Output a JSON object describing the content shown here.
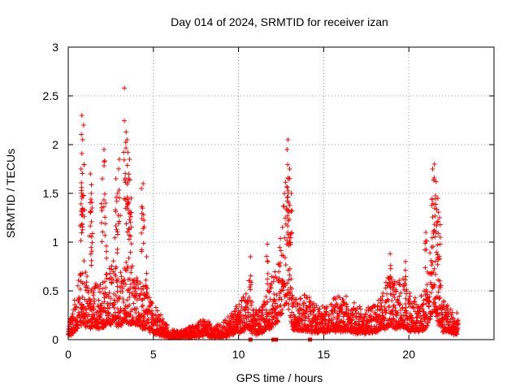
{
  "chart_data": {
    "type": "scatter",
    "title": "Day 014 of 2024, SRMTID for receiver izan",
    "xlabel": "GPS time / hours",
    "ylabel": "SRMTID / TECUs",
    "xlim": [
      0,
      25
    ],
    "ylim": [
      0,
      3
    ],
    "grid": true,
    "marker": "+",
    "marker_color": "#ff0000",
    "x_ticks": [
      0,
      5,
      10,
      15,
      20
    ],
    "x_tick_labels": [
      "0",
      "5",
      "10",
      "15",
      "20"
    ],
    "y_ticks": [
      0,
      0.5,
      1,
      1.5,
      2,
      2.5,
      3
    ],
    "y_tick_labels": [
      "0",
      "0.5",
      "1",
      "1.5",
      "2",
      "2.5",
      "3"
    ],
    "series": [
      {
        "name": "SRMTID",
        "envelope": [
          [
            0.0,
            0.15
          ],
          [
            0.3,
            0.3
          ],
          [
            0.6,
            0.5
          ],
          [
            0.9,
            0.7
          ],
          [
            1.2,
            0.45
          ],
          [
            1.5,
            0.55
          ],
          [
            1.8,
            0.45
          ],
          [
            2.1,
            0.5
          ],
          [
            2.4,
            0.65
          ],
          [
            2.7,
            0.7
          ],
          [
            3.0,
            0.55
          ],
          [
            3.3,
            0.75
          ],
          [
            3.6,
            0.7
          ],
          [
            3.9,
            0.65
          ],
          [
            4.2,
            0.55
          ],
          [
            4.5,
            0.45
          ],
          [
            4.8,
            0.35
          ],
          [
            5.0,
            0.3
          ],
          [
            5.5,
            0.18
          ],
          [
            6.0,
            0.08
          ],
          [
            6.5,
            0.07
          ],
          [
            7.0,
            0.1
          ],
          [
            7.5,
            0.13
          ],
          [
            8.0,
            0.18
          ],
          [
            8.5,
            0.12
          ],
          [
            9.0,
            0.13
          ],
          [
            9.5,
            0.22
          ],
          [
            10.0,
            0.3
          ],
          [
            10.3,
            0.38
          ],
          [
            10.6,
            0.5
          ],
          [
            10.8,
            0.3
          ],
          [
            11.0,
            0.25
          ],
          [
            11.5,
            0.35
          ],
          [
            12.0,
            0.55
          ],
          [
            12.3,
            0.7
          ],
          [
            12.6,
            1.1
          ],
          [
            12.8,
            1.5
          ],
          [
            13.0,
            1.1
          ],
          [
            13.2,
            0.4
          ],
          [
            13.5,
            0.35
          ],
          [
            14.0,
            0.4
          ],
          [
            14.5,
            0.3
          ],
          [
            15.0,
            0.3
          ],
          [
            15.5,
            0.35
          ],
          [
            16.0,
            0.38
          ],
          [
            16.5,
            0.35
          ],
          [
            17.0,
            0.3
          ],
          [
            17.5,
            0.28
          ],
          [
            18.0,
            0.3
          ],
          [
            18.5,
            0.45
          ],
          [
            18.8,
            0.55
          ],
          [
            19.2,
            0.5
          ],
          [
            19.6,
            0.55
          ],
          [
            20.0,
            0.4
          ],
          [
            20.5,
            0.35
          ],
          [
            21.0,
            0.45
          ],
          [
            21.3,
            0.9
          ],
          [
            21.5,
            1.2
          ],
          [
            21.7,
            0.7
          ],
          [
            22.0,
            0.35
          ],
          [
            22.5,
            0.25
          ],
          [
            22.9,
            0.25
          ]
        ],
        "spikes": [
          [
            0.8,
            2.3
          ],
          [
            0.9,
            2.2
          ],
          [
            0.85,
            2.05
          ],
          [
            0.75,
            1.75
          ],
          [
            0.8,
            1.45
          ],
          [
            1.3,
            1.7
          ],
          [
            1.35,
            1.5
          ],
          [
            1.4,
            1.35
          ],
          [
            2.1,
            1.95
          ],
          [
            2.0,
            1.65
          ],
          [
            2.2,
            1.4
          ],
          [
            2.8,
            1.65
          ],
          [
            2.9,
            1.5
          ],
          [
            3.0,
            1.85
          ],
          [
            3.3,
            2.58
          ],
          [
            3.4,
            2.13
          ],
          [
            3.45,
            2.05
          ],
          [
            3.5,
            1.92
          ],
          [
            3.6,
            1.85
          ],
          [
            3.55,
            1.65
          ],
          [
            3.7,
            1.45
          ],
          [
            4.3,
            1.55
          ],
          [
            4.4,
            1.6
          ],
          [
            4.6,
            0.85
          ],
          [
            10.7,
            0.85
          ],
          [
            11.7,
            0.98
          ],
          [
            12.9,
            2.05
          ],
          [
            12.85,
            1.95
          ],
          [
            13.0,
            1.75
          ],
          [
            13.1,
            1.5
          ],
          [
            18.9,
            0.88
          ],
          [
            19.8,
            0.8
          ],
          [
            21.0,
            1.1
          ],
          [
            21.4,
            1.75
          ],
          [
            21.5,
            1.8
          ],
          [
            21.6,
            1.62
          ],
          [
            21.7,
            1.45
          ],
          [
            21.8,
            1.25
          ]
        ]
      }
    ],
    "gap_markers_x": [
      10.7,
      12.2,
      14.2,
      12.05
    ]
  }
}
